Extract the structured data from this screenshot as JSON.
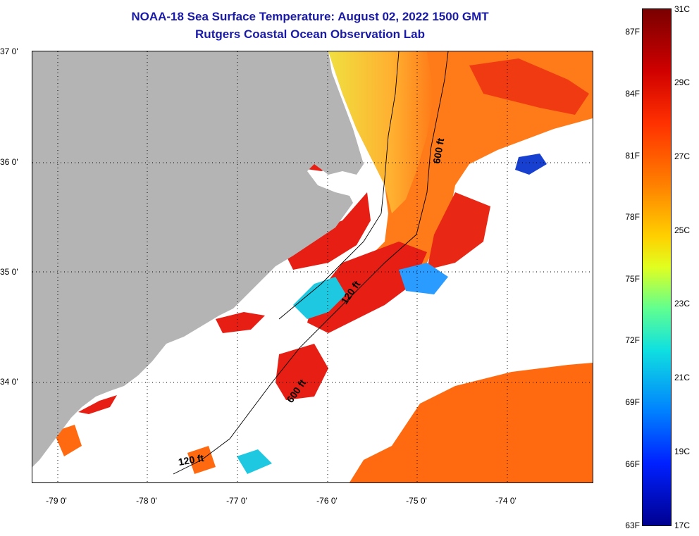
{
  "title": {
    "line1": "NOAA-18 Sea Surface Temperature:  August 02, 2022 1500 GMT",
    "line2": "Rutgers Coastal Ocean Observation Lab"
  },
  "map": {
    "lat_labels": [
      "37 0'",
      "36 0'",
      "35 0'",
      "34 0'"
    ],
    "lon_labels": [
      "-79 0'",
      "-78 0'",
      "-77 0'",
      "-76 0'",
      "-75 0'",
      "-74 0'"
    ],
    "isobath_labels": [
      "600 ft",
      "120 ft",
      "600 ft",
      "120 ft"
    ],
    "colors": {
      "land": "#b4b4b4",
      "cloud": "#ffffff",
      "warm": "#ff6a10",
      "hot": "#e61010",
      "cool": "#1ec8e0"
    }
  },
  "colorbar": {
    "fahrenheit_ticks": [
      "87F",
      "84F",
      "81F",
      "78F",
      "75F",
      "72F",
      "69F",
      "66F",
      "63F"
    ],
    "celsius_ticks": [
      "31C",
      "29C",
      "27C",
      "25C",
      "23C",
      "21C",
      "19C",
      "17C"
    ]
  }
}
